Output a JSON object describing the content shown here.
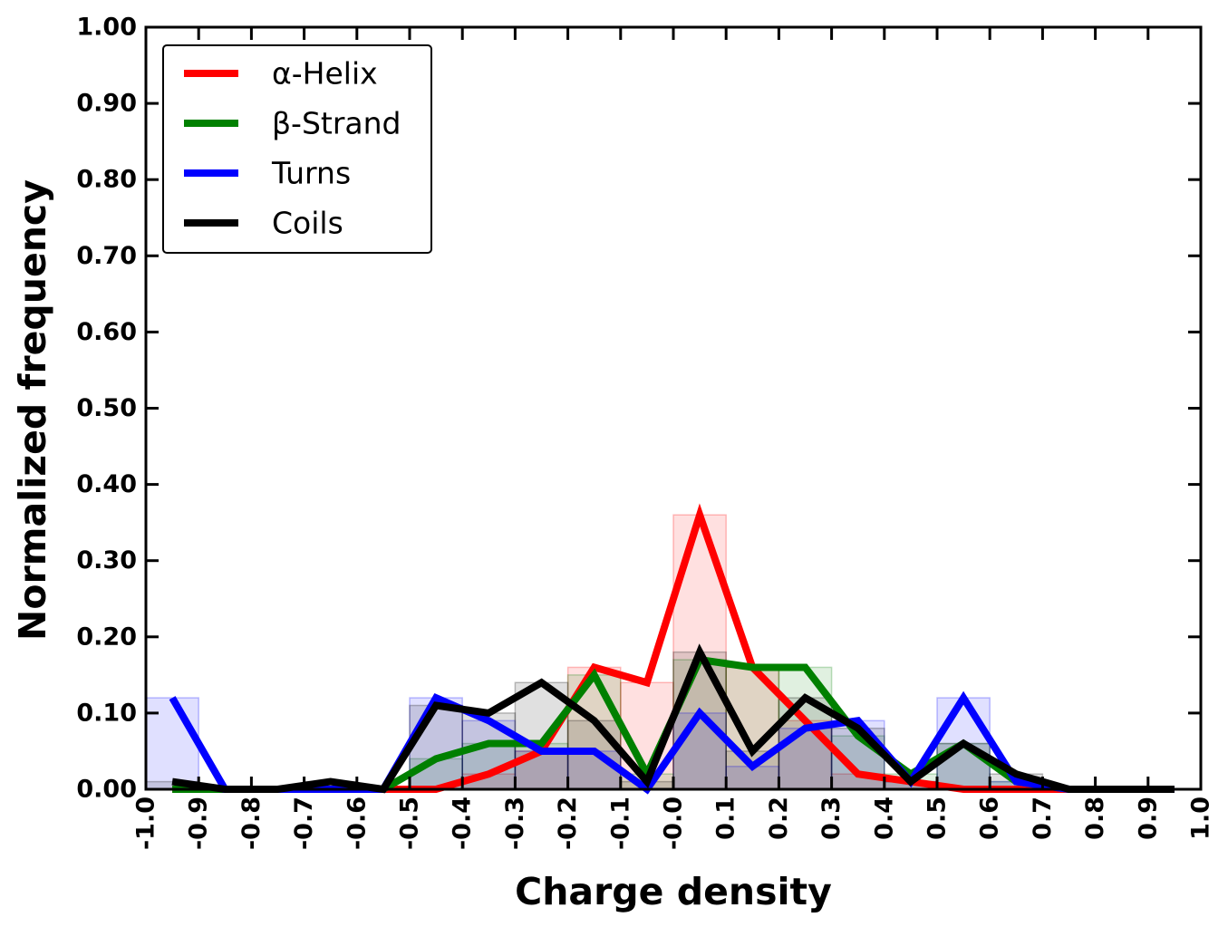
{
  "chart_data": {
    "type": "line",
    "xlabel": "Charge density",
    "ylabel": "Normalized frequency",
    "xlim": [
      -1.0,
      1.0
    ],
    "ylim": [
      0.0,
      1.0
    ],
    "x_ticks": [
      "-1.0",
      "-0.9",
      "-0.8",
      "-0.7",
      "-0.6",
      "-0.5",
      "-0.4",
      "-0.3",
      "-0.2",
      "-0.1",
      "-0.0",
      "0.1",
      "0.2",
      "0.3",
      "0.4",
      "0.5",
      "0.6",
      "0.7",
      "0.8",
      "0.9",
      "1.0"
    ],
    "y_ticks": [
      "0.00",
      "0.10",
      "0.20",
      "0.30",
      "0.40",
      "0.50",
      "0.60",
      "0.70",
      "0.80",
      "0.90",
      "1.00"
    ],
    "grid": false,
    "legend_position": "top-left",
    "bin_width": 0.1,
    "x": [
      -0.95,
      -0.85,
      -0.75,
      -0.65,
      -0.55,
      -0.45,
      -0.35,
      -0.25,
      -0.15,
      -0.05,
      0.05,
      0.15,
      0.25,
      0.35,
      0.45,
      0.55,
      0.65,
      0.75,
      0.85,
      0.95
    ],
    "series": [
      {
        "name": "α-Helix",
        "color": "#ff0000",
        "values": [
          0.0,
          0.0,
          0.0,
          0.0,
          0.0,
          0.0,
          0.02,
          0.05,
          0.16,
          0.14,
          0.36,
          0.16,
          0.09,
          0.02,
          0.01,
          0.0,
          0.0,
          0.0,
          0.0,
          0.0
        ]
      },
      {
        "name": "β-Strand",
        "color": "#008000",
        "values": [
          0.0,
          0.0,
          0.0,
          0.0,
          0.0,
          0.04,
          0.06,
          0.06,
          0.15,
          0.02,
          0.17,
          0.16,
          0.16,
          0.07,
          0.02,
          0.06,
          0.01,
          0.0,
          0.0,
          0.0
        ]
      },
      {
        "name": "Turns",
        "color": "#0000ff",
        "values": [
          0.12,
          0.0,
          0.0,
          0.0,
          0.0,
          0.12,
          0.09,
          0.05,
          0.05,
          0.0,
          0.1,
          0.03,
          0.08,
          0.09,
          0.01,
          0.12,
          0.01,
          0.0,
          0.0,
          0.0
        ]
      },
      {
        "name": "Coils",
        "color": "#000000",
        "values": [
          0.01,
          0.0,
          0.0,
          0.01,
          0.0,
          0.11,
          0.1,
          0.14,
          0.09,
          0.01,
          0.18,
          0.05,
          0.12,
          0.08,
          0.01,
          0.06,
          0.02,
          0.0,
          0.0,
          0.0
        ]
      }
    ]
  }
}
